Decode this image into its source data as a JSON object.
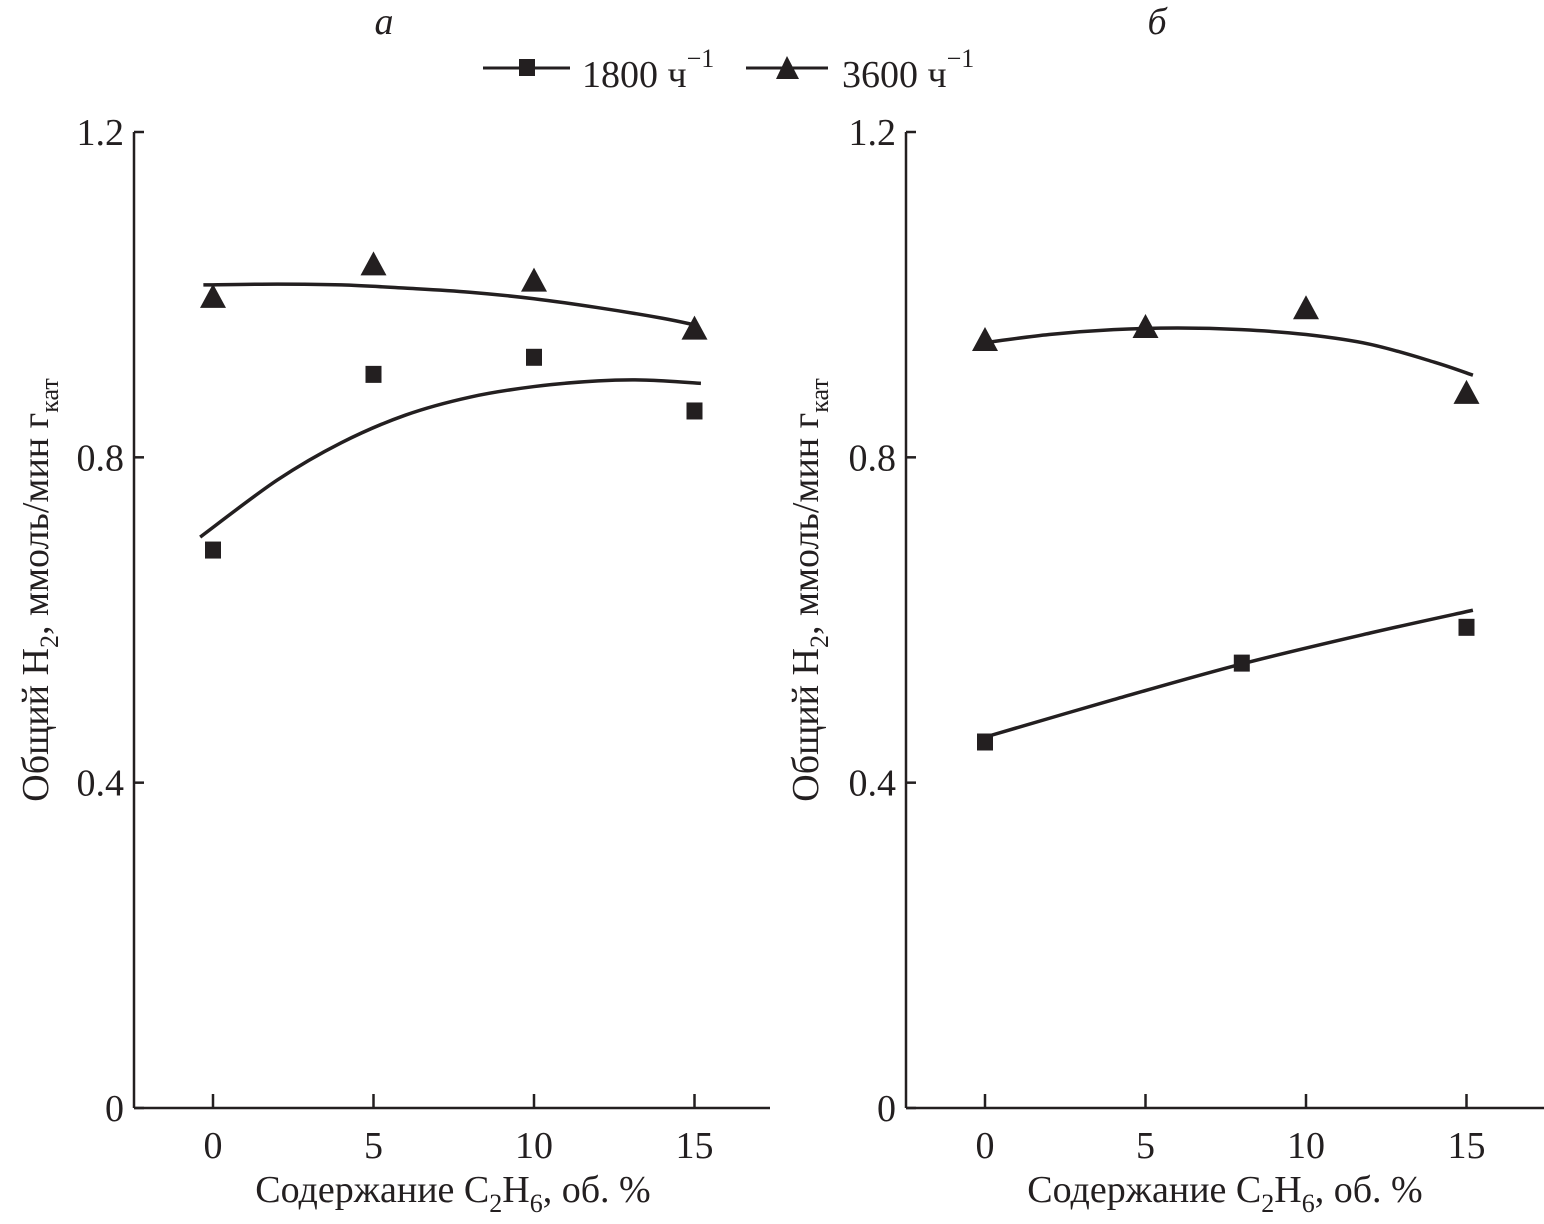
{
  "legend": {
    "items": [
      {
        "label": "1800 ч",
        "superscript": "−1",
        "marker": "square"
      },
      {
        "label": "3600 ч",
        "superscript": "−1",
        "marker": "triangle"
      }
    ]
  },
  "chart_data": [
    {
      "type": "scatter",
      "panel_label": "а",
      "title": "",
      "xlabel": {
        "main": "Содержание C",
        "sub1": "2",
        "mid": "H",
        "sub2": "6",
        "tail": ", об. %"
      },
      "ylabel": {
        "main": "Общий H",
        "sub1": "2",
        "mid": ", ммоль/мин г",
        "sub2": "кат"
      },
      "xlim": [
        -2.5,
        17.5
      ],
      "ylim": [
        0,
        1.2
      ],
      "xticks": [
        0,
        5,
        10,
        15
      ],
      "yticks": [
        0,
        0.4,
        0.8,
        1.2
      ],
      "ytick_labels": [
        "0",
        "0.4",
        "0.8",
        "1.2"
      ],
      "grid": false,
      "legend_position": "top-center",
      "series": [
        {
          "name": "1800 ч−1",
          "marker": "square",
          "x": [
            0,
            5,
            10,
            15
          ],
          "y": [
            0.686,
            0.902,
            0.923,
            0.857
          ],
          "fit": {
            "x": [
              -0.4,
              2,
              4,
              6,
              8,
              10,
              12,
              13.5,
              15.2
            ],
            "y": [
              0.702,
              0.772,
              0.818,
              0.852,
              0.874,
              0.887,
              0.894,
              0.895,
              0.891
            ]
          }
        },
        {
          "name": "3600 ч−1",
          "marker": "triangle",
          "x": [
            0,
            5,
            10,
            15
          ],
          "y": [
            0.996,
            1.036,
            1.016,
            0.957
          ],
          "fit": {
            "x": [
              -0.3,
              2,
              4,
              6,
              8,
              10,
              12,
              14,
              15.1
            ],
            "y": [
              1.012,
              1.013,
              1.012,
              1.008,
              1.003,
              0.995,
              0.984,
              0.971,
              0.962
            ]
          }
        }
      ]
    },
    {
      "type": "scatter",
      "panel_label": "б",
      "title": "",
      "xlabel": {
        "main": "Содержание C",
        "sub1": "2",
        "mid": "H",
        "sub2": "6",
        "tail": ", об. %"
      },
      "ylabel": {
        "main": "Общий H",
        "sub1": "2",
        "mid": ", ммоль/мин г",
        "sub2": "кат"
      },
      "xlim": [
        -2.5,
        17.5
      ],
      "ylim": [
        0,
        1.2
      ],
      "xticks": [
        0,
        5,
        10,
        15
      ],
      "yticks": [
        0,
        0.4,
        0.8,
        1.2
      ],
      "ytick_labels": [
        "0",
        "0.4",
        "0.8",
        "1.2"
      ],
      "grid": false,
      "legend_position": "top-center",
      "series": [
        {
          "name": "1800 ч−1",
          "marker": "square",
          "x": [
            0,
            8,
            15
          ],
          "y": [
            0.45,
            0.547,
            0.591
          ],
          "fit": {
            "x": [
              0,
              4,
              8,
              12,
              15.2
            ],
            "y": [
              0.456,
              0.502,
              0.546,
              0.584,
              0.612
            ]
          }
        },
        {
          "name": "3600 ч−1",
          "marker": "triangle",
          "x": [
            0,
            5,
            10,
            15
          ],
          "y": [
            0.943,
            0.959,
            0.982,
            0.878
          ],
          "fit": {
            "x": [
              0,
              2,
              4,
              6,
              8,
              10,
              12,
              14,
              15.2
            ],
            "y": [
              0.941,
              0.951,
              0.957,
              0.959,
              0.957,
              0.951,
              0.939,
              0.917,
              0.901
            ]
          }
        }
      ]
    }
  ]
}
